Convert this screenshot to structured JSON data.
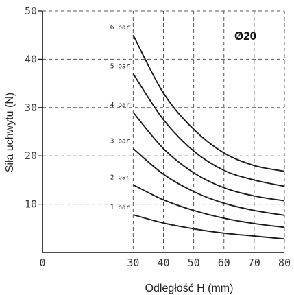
{
  "chart_data": {
    "type": "line",
    "title": "",
    "annotation": "Ø20",
    "xlabel": "Odległość H (mm)",
    "ylabel": "Siła uchwytu (N)",
    "xlim": [
      0,
      80
    ],
    "ylim": [
      0,
      50
    ],
    "x_ticks": [
      "0",
      "30",
      "40",
      "50",
      "60",
      "70",
      "80"
    ],
    "y_ticks": [
      "10",
      "20",
      "30",
      "40",
      "50"
    ],
    "grid": true,
    "x": [
      30,
      40,
      50,
      60,
      70,
      80
    ],
    "series": [
      {
        "name": "1 bar",
        "values": [
          7.8,
          6.1,
          4.9,
          4.0,
          3.4,
          2.8
        ]
      },
      {
        "name": "2 bar",
        "values": [
          14.0,
          10.9,
          8.7,
          7.1,
          6.0,
          5.2
        ]
      },
      {
        "name": "3 bar",
        "values": [
          21.5,
          16.2,
          12.6,
          10.2,
          8.7,
          7.7
        ]
      },
      {
        "name": "4 bar",
        "values": [
          29.0,
          21.5,
          16.5,
          13.4,
          11.7,
          10.7
        ]
      },
      {
        "name": "5 bar",
        "values": [
          37.0,
          27.5,
          21.0,
          17.0,
          15.0,
          13.7
        ]
      },
      {
        "name": "6 bar",
        "values": [
          45.0,
          33.0,
          25.5,
          20.6,
          18.0,
          16.8
        ]
      }
    ]
  }
}
